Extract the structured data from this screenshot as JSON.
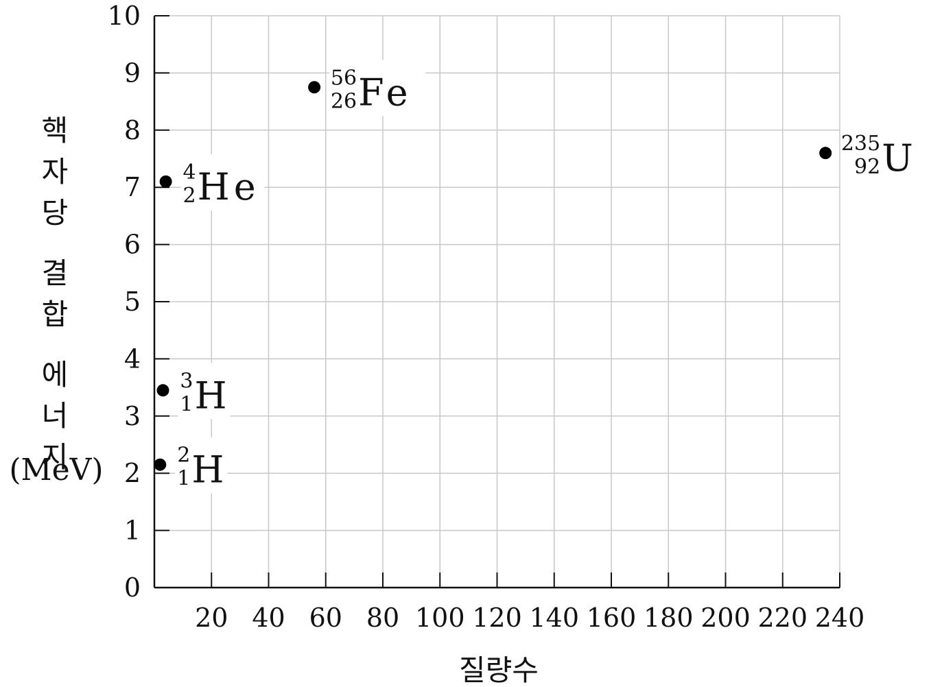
{
  "chart_data": {
    "type": "scatter",
    "xlabel": "질량수",
    "ylabel": "핵자당 결합 에너지",
    "ylabel_unit": "(MeV)",
    "xlim": [
      0,
      240
    ],
    "ylim": [
      0,
      10
    ],
    "x_ticks": [
      "20",
      "40",
      "60",
      "80",
      "100",
      "120",
      "140",
      "160",
      "180",
      "200",
      "220",
      "240"
    ],
    "y_ticks": [
      "0",
      "1",
      "2",
      "3",
      "4",
      "5",
      "6",
      "7",
      "8",
      "9",
      "10"
    ],
    "grid": true,
    "points": [
      {
        "x": 2,
        "y": 2.15,
        "symbol": "H",
        "mass": "2",
        "atomic": "1"
      },
      {
        "x": 3,
        "y": 3.45,
        "symbol": "H",
        "mass": "3",
        "atomic": "1"
      },
      {
        "x": 4,
        "y": 7.1,
        "symbol": "He",
        "mass": "4",
        "atomic": "2"
      },
      {
        "x": 56,
        "y": 8.75,
        "symbol": "Fe",
        "mass": "56",
        "atomic": "26"
      },
      {
        "x": 235,
        "y": 7.6,
        "symbol": "U",
        "mass": "235",
        "atomic": "92"
      }
    ]
  }
}
